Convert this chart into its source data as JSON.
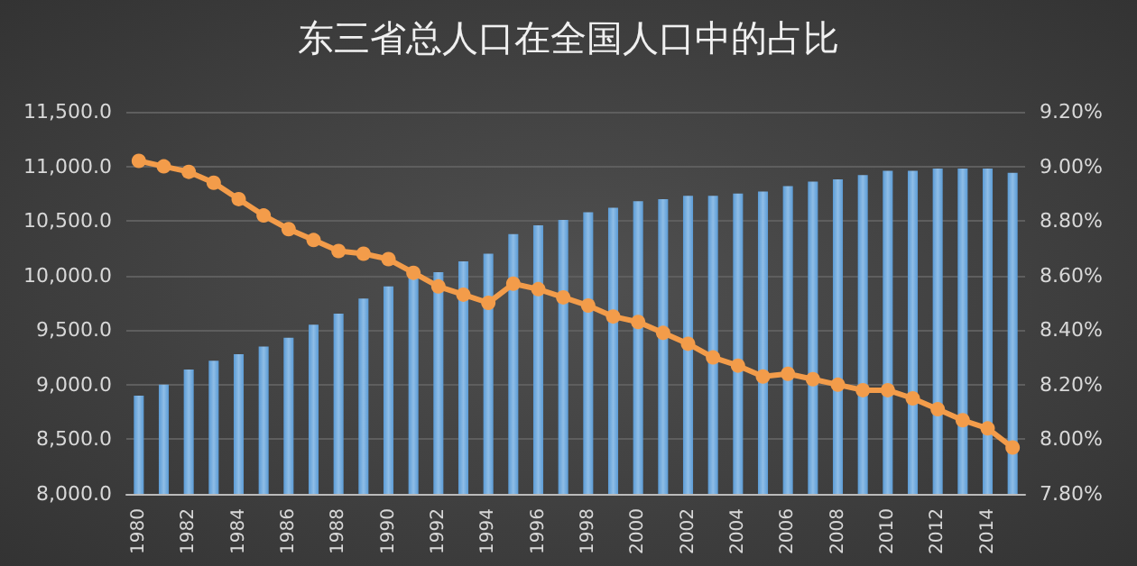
{
  "chart_data": {
    "type": "bar",
    "title": "东三省总人口在全国人口中的占比",
    "categories": [
      "1980",
      null,
      "1982",
      null,
      "1984",
      null,
      "1986",
      null,
      "1988",
      null,
      "1990",
      null,
      "1992",
      null,
      "1994",
      null,
      "1996",
      null,
      "1998",
      null,
      "2000",
      null,
      "2002",
      null,
      "2004",
      null,
      "2006",
      null,
      "2008",
      null,
      "2010",
      null,
      "2012",
      null,
      "2014",
      null
    ],
    "series": [
      {
        "color": "#5b9bd5",
        "values": [
          8900,
          9000,
          9140,
          9220,
          9280,
          9350,
          9430,
          9550,
          9650,
          9790,
          9900,
          9990,
          10030,
          10130,
          10200,
          10380,
          10460,
          10510,
          10580,
          10620,
          10680,
          10700,
          10730,
          10730,
          10750,
          10770,
          10820,
          10860,
          10880,
          10920,
          10960,
          10960,
          10980,
          10980,
          10980,
          10940
        ]
      },
      {
        "type": "line",
        "axis": "y2",
        "color": "#f39c4a",
        "values": [
          9.02,
          9.0,
          8.98,
          8.94,
          8.88,
          8.82,
          8.77,
          8.73,
          8.69,
          8.68,
          8.66,
          8.61,
          8.56,
          8.53,
          8.5,
          8.57,
          8.55,
          8.52,
          8.49,
          8.45,
          8.43,
          8.39,
          8.35,
          8.3,
          8.27,
          8.23,
          8.24,
          8.22,
          8.2,
          8.18,
          8.18,
          8.15,
          8.11,
          8.07,
          8.04,
          7.97
        ]
      }
    ],
    "ylim": [
      8000,
      11500
    ],
    "yticks": [
      {
        "value": 8000,
        "label": "8,000.0"
      },
      {
        "value": 8500,
        "label": "8,500.0"
      },
      {
        "value": 9000,
        "label": "9,000.0"
      },
      {
        "value": 9500,
        "label": "9,500.0"
      },
      {
        "value": 10000,
        "label": "10,000.0"
      },
      {
        "value": 10500,
        "label": "10,500.0"
      },
      {
        "value": 11000,
        "label": "11,000.0"
      },
      {
        "value": 11500,
        "label": "11,500.0"
      }
    ],
    "y2lim": [
      7.8,
      9.2
    ],
    "y2ticks": [
      {
        "value": 7.8,
        "label": "7.80%"
      },
      {
        "value": 8.0,
        "label": "8.00%"
      },
      {
        "value": 8.2,
        "label": "8.20%"
      },
      {
        "value": 8.4,
        "label": "8.40%"
      },
      {
        "value": 8.6,
        "label": "8.60%"
      },
      {
        "value": 8.8,
        "label": "8.80%"
      },
      {
        "value": 9.0,
        "label": "9.00%"
      },
      {
        "value": 9.2,
        "label": "9.20%"
      }
    ],
    "grid": "y",
    "marker": "circle",
    "line_style": "solid"
  }
}
